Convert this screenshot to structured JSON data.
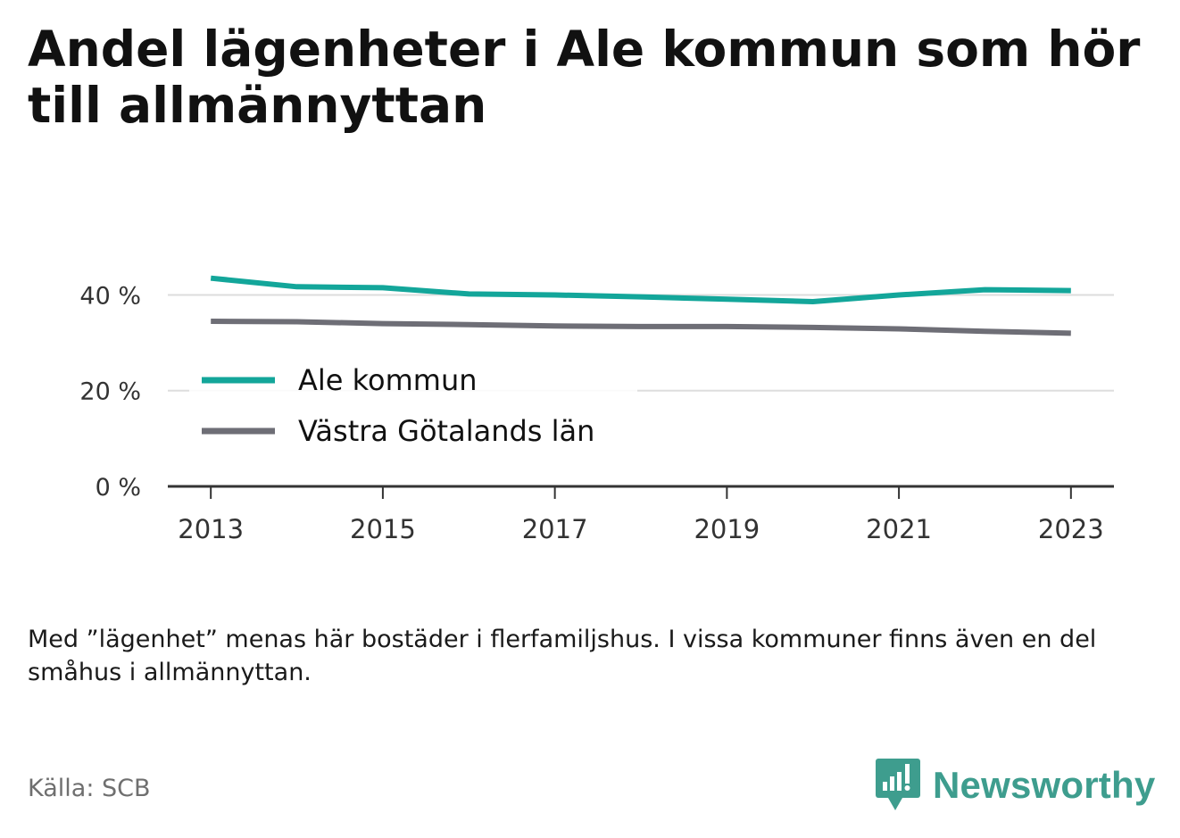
{
  "title": "Andel lägenheter i Ale kommun som hör till allmännyttan",
  "note": "Med ”lägenhet” menas här bostäder i flerfamiljshus. I vissa kommuner finns även en del småhus i allmännyttan.",
  "source": "Källa: SCB",
  "brand": {
    "name": "Newsworthy",
    "logo_icon": "bar-chart-speech-bubble-icon"
  },
  "colors": {
    "ale": "#13a69a",
    "vastra": "#6e6e76",
    "grid": "#dddddd",
    "axis": "#333333",
    "brand": "#3e9d8e"
  },
  "chart_data": {
    "type": "line",
    "x": [
      2013,
      2014,
      2015,
      2016,
      2017,
      2018,
      2019,
      2020,
      2021,
      2022,
      2023
    ],
    "series": [
      {
        "name": "Ale kommun",
        "values": [
          43.5,
          41.7,
          41.5,
          40.2,
          40.0,
          39.6,
          39.1,
          38.6,
          40.0,
          41.1,
          40.9
        ]
      },
      {
        "name": "Västra Götalands län",
        "values": [
          34.5,
          34.4,
          34.0,
          33.8,
          33.5,
          33.4,
          33.4,
          33.2,
          32.9,
          32.4,
          32.0
        ]
      }
    ],
    "xticks": [
      2013,
      2015,
      2017,
      2019,
      2021,
      2023
    ],
    "xtick_labels": [
      "2013",
      "2015",
      "2017",
      "2019",
      "2021",
      "2023"
    ],
    "yticks": [
      0,
      20,
      40
    ],
    "ytick_labels": [
      "0 %",
      "20 %",
      "40 %"
    ],
    "xlim": [
      2012.5,
      2023.5
    ],
    "ylim": [
      0,
      44
    ],
    "grid": true,
    "legend_position": "center-left"
  }
}
